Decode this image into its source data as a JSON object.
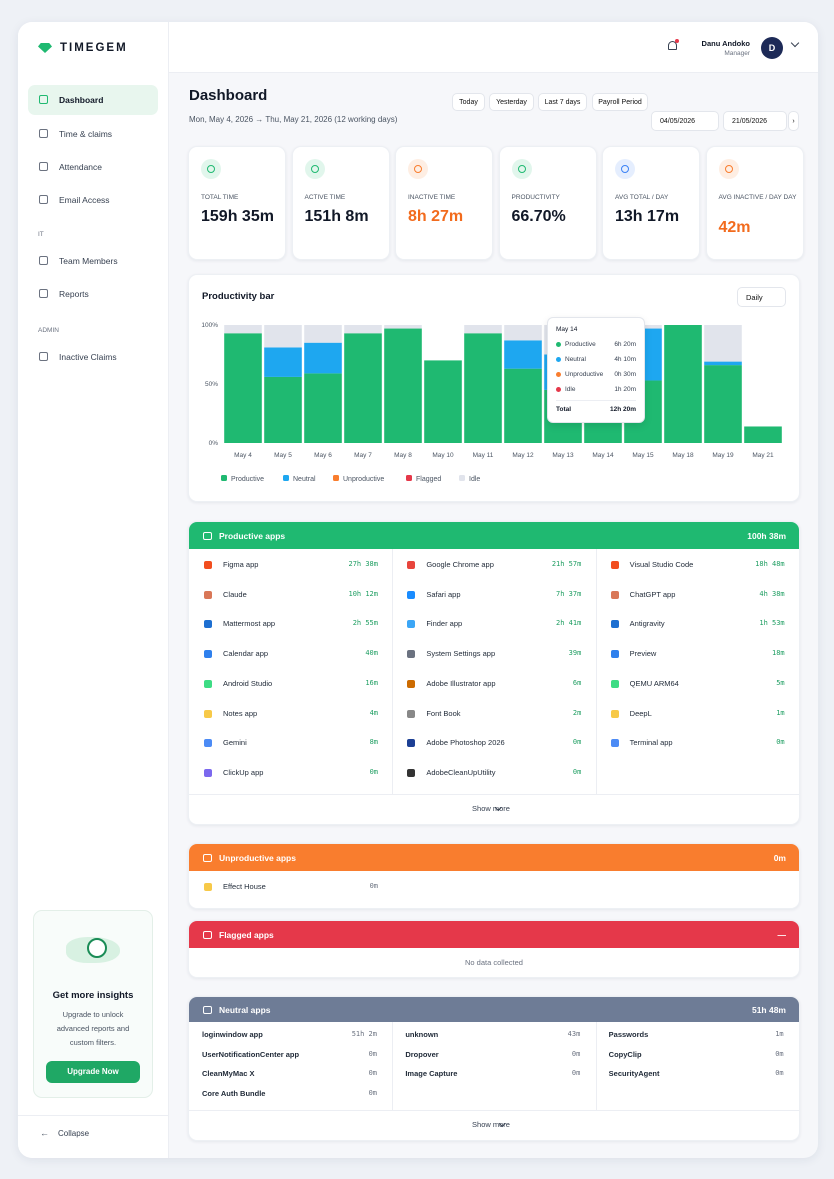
{
  "sidebar": {
    "brand": "TIMEGEM",
    "nav": [
      "Dashboard",
      "Time & claims",
      "Attendance",
      "Email Access"
    ],
    "sections": [
      {
        "title": "IT",
        "items": [
          "Team Members",
          "Reports"
        ]
      },
      {
        "title": "ADMIN",
        "items": [
          "Inactive Claims"
        ]
      }
    ],
    "promo": {
      "title": "Get more insights",
      "text": "Upgrade to unlock advanced reports and custom filters.",
      "button": "Upgrade Now"
    },
    "collapse": "Collapse"
  },
  "header": {
    "user": "Danu Andoko",
    "role": "Manager",
    "avatar": "D"
  },
  "page": {
    "title": "Dashboard",
    "range": "Mon, May 4, 2026 → Thu, May 21, 2026 (12 working days)",
    "filters": [
      "Today",
      "Yesterday",
      "Last 7 days",
      "Payroll Period"
    ],
    "date_from": "04/05/2026",
    "date_to": "21/05/2026"
  },
  "stats": [
    {
      "label": "TOTAL TIME",
      "value": "159h 35m",
      "color": "#111827"
    },
    {
      "label": "ACTIVE TIME",
      "value": "151h 8m",
      "color": "#111827"
    },
    {
      "label": "INACTIVE TIME",
      "value": "8h 27m",
      "color": "#f26b1d"
    },
    {
      "label": "PRODUCTIVITY",
      "value": "66.70%",
      "color": "#111827"
    },
    {
      "label": "AVG TOTAL / DAY",
      "value": "13h 17m",
      "color": "#111827"
    },
    {
      "label": "AVG INACTIVE / DAY DAY",
      "value": "42m",
      "color": "#f26b1d"
    }
  ],
  "chart_data": {
    "type": "bar",
    "stacked": true,
    "title": "Productivity bar",
    "period": "Daily",
    "categories": [
      "May 4",
      "May 5",
      "May 6",
      "May 7",
      "May 8",
      "May 10",
      "May 11",
      "May 12",
      "May 13",
      "May 14",
      "May 15",
      "May 18",
      "May 19",
      "May 21"
    ],
    "series": [
      {
        "name": "Productive",
        "color": "#1fb971",
        "values": [
          93,
          56,
          59,
          93,
          97,
          70,
          93,
          63,
          45,
          51,
          53,
          100,
          66,
          14
        ]
      },
      {
        "name": "Neutral",
        "color": "#1ea7f0",
        "values": [
          0,
          25,
          26,
          0,
          0,
          0,
          0,
          24,
          30,
          34,
          44,
          0,
          3,
          0
        ]
      },
      {
        "name": "Unproductive",
        "color": "#f97d2e",
        "values": [
          0,
          0,
          0,
          0,
          0,
          0,
          0,
          0,
          0,
          4,
          0,
          0,
          0,
          0
        ]
      },
      {
        "name": "Flagged",
        "color": "#e5384a",
        "values": [
          0,
          0,
          0,
          0,
          0,
          0,
          0,
          0,
          0,
          0,
          0,
          0,
          0,
          0
        ]
      },
      {
        "name": "Idle",
        "color": "#e1e4ec",
        "values": [
          7,
          19,
          15,
          7,
          3,
          0,
          7,
          13,
          25,
          11,
          3,
          0,
          31,
          0
        ]
      }
    ],
    "ylim": [
      0,
      100
    ],
    "yticks": [
      {
        "value": 0,
        "label": "0%"
      },
      {
        "value": 50,
        "label": "50%"
      },
      {
        "value": 100,
        "label": "100%"
      }
    ],
    "grid": false,
    "tooltip": {
      "title": "May 14",
      "rows": [
        {
          "name": "Productive",
          "value": "6h 20m",
          "color": "#1fb971"
        },
        {
          "name": "Neutral",
          "value": "4h 10m",
          "color": "#1ea7f0"
        },
        {
          "name": "Unproductive",
          "value": "0h 30m",
          "color": "#f97d2e"
        },
        {
          "name": "Idle",
          "value": "1h 20m",
          "color": "#e5384a"
        }
      ],
      "total_label": "Total",
      "total": "12h 20m"
    }
  },
  "groups": [
    {
      "title": "Productive apps",
      "total": "100h 38m",
      "color": "#1fb971",
      "time_color": "#1f9e62",
      "row_height": 29.7,
      "top": 499,
      "columns": [
        [
          {
            "name": "Figma app",
            "time": "27h 38m"
          },
          {
            "name": "Claude",
            "time": "10h 12m"
          },
          {
            "name": "Mattermost app",
            "time": "2h 55m"
          },
          {
            "name": "Calendar app",
            "time": "40m"
          },
          {
            "name": "Android Studio",
            "time": "16m"
          },
          {
            "name": "Notes app",
            "time": "4m"
          },
          {
            "name": "Gemini",
            "time": "8m"
          },
          {
            "name": "ClickUp app",
            "time": "0m"
          }
        ],
        [
          {
            "name": "Google Chrome app",
            "time": "21h 57m"
          },
          {
            "name": "Safari app",
            "time": "7h 37m"
          },
          {
            "name": "Finder app",
            "time": "2h 41m"
          },
          {
            "name": "System Settings app",
            "time": "39m"
          },
          {
            "name": "Adobe Illustrator app",
            "time": "6m"
          },
          {
            "name": "Font Book",
            "time": "2m"
          },
          {
            "name": "Adobe Photoshop 2026",
            "time": "0m"
          },
          {
            "name": "AdobeCleanUpUtility",
            "time": "0m"
          }
        ],
        [
          {
            "name": "Visual Studio Code",
            "time": "18h 48m"
          },
          {
            "name": "ChatGPT app",
            "time": "4h 38m"
          },
          {
            "name": "Antigravity",
            "time": "1h 53m"
          },
          {
            "name": "Preview",
            "time": "18m"
          },
          {
            "name": "QEMU ARM64",
            "time": "5m"
          },
          {
            "name": "DeepL",
            "time": "1m"
          },
          {
            "name": "Terminal app",
            "time": "0m"
          }
        ]
      ],
      "more": "Show more"
    },
    {
      "title": "Unproductive apps",
      "total": "0m",
      "color": "#f97d2e",
      "time_color": "#6b7280",
      "row_height": 29.7,
      "top": 821,
      "columns": [
        [
          {
            "name": "Effect House",
            "time": "0m"
          }
        ]
      ]
    },
    {
      "title": "Flagged apps",
      "total": "—",
      "color": "#e5384a",
      "time_color": "#6b7280",
      "top": 898,
      "empty": "No data collected"
    },
    {
      "title": "Neutral apps",
      "total": "51h 48m",
      "color": "#6e7c96",
      "time_color": "#6b7280",
      "row_height": 19.5,
      "top": 974,
      "compact": true,
      "columns": [
        [
          {
            "name": "loginwindow app",
            "time": "51h 2m"
          },
          {
            "name": "UserNotificationCenter app",
            "time": "0m"
          },
          {
            "name": "CleanMyMac X",
            "time": "0m"
          },
          {
            "name": "Core Auth Bundle",
            "time": "0m"
          }
        ],
        [
          {
            "name": "unknown",
            "time": "43m"
          },
          {
            "name": "Dropover",
            "time": "0m"
          },
          {
            "name": "Image Capture",
            "time": "0m"
          }
        ],
        [
          {
            "name": "Passwords",
            "time": "1m"
          },
          {
            "name": "CopyClip",
            "time": "0m"
          },
          {
            "name": "SecurityAgent",
            "time": "0m"
          }
        ]
      ],
      "more": "Show more"
    }
  ]
}
